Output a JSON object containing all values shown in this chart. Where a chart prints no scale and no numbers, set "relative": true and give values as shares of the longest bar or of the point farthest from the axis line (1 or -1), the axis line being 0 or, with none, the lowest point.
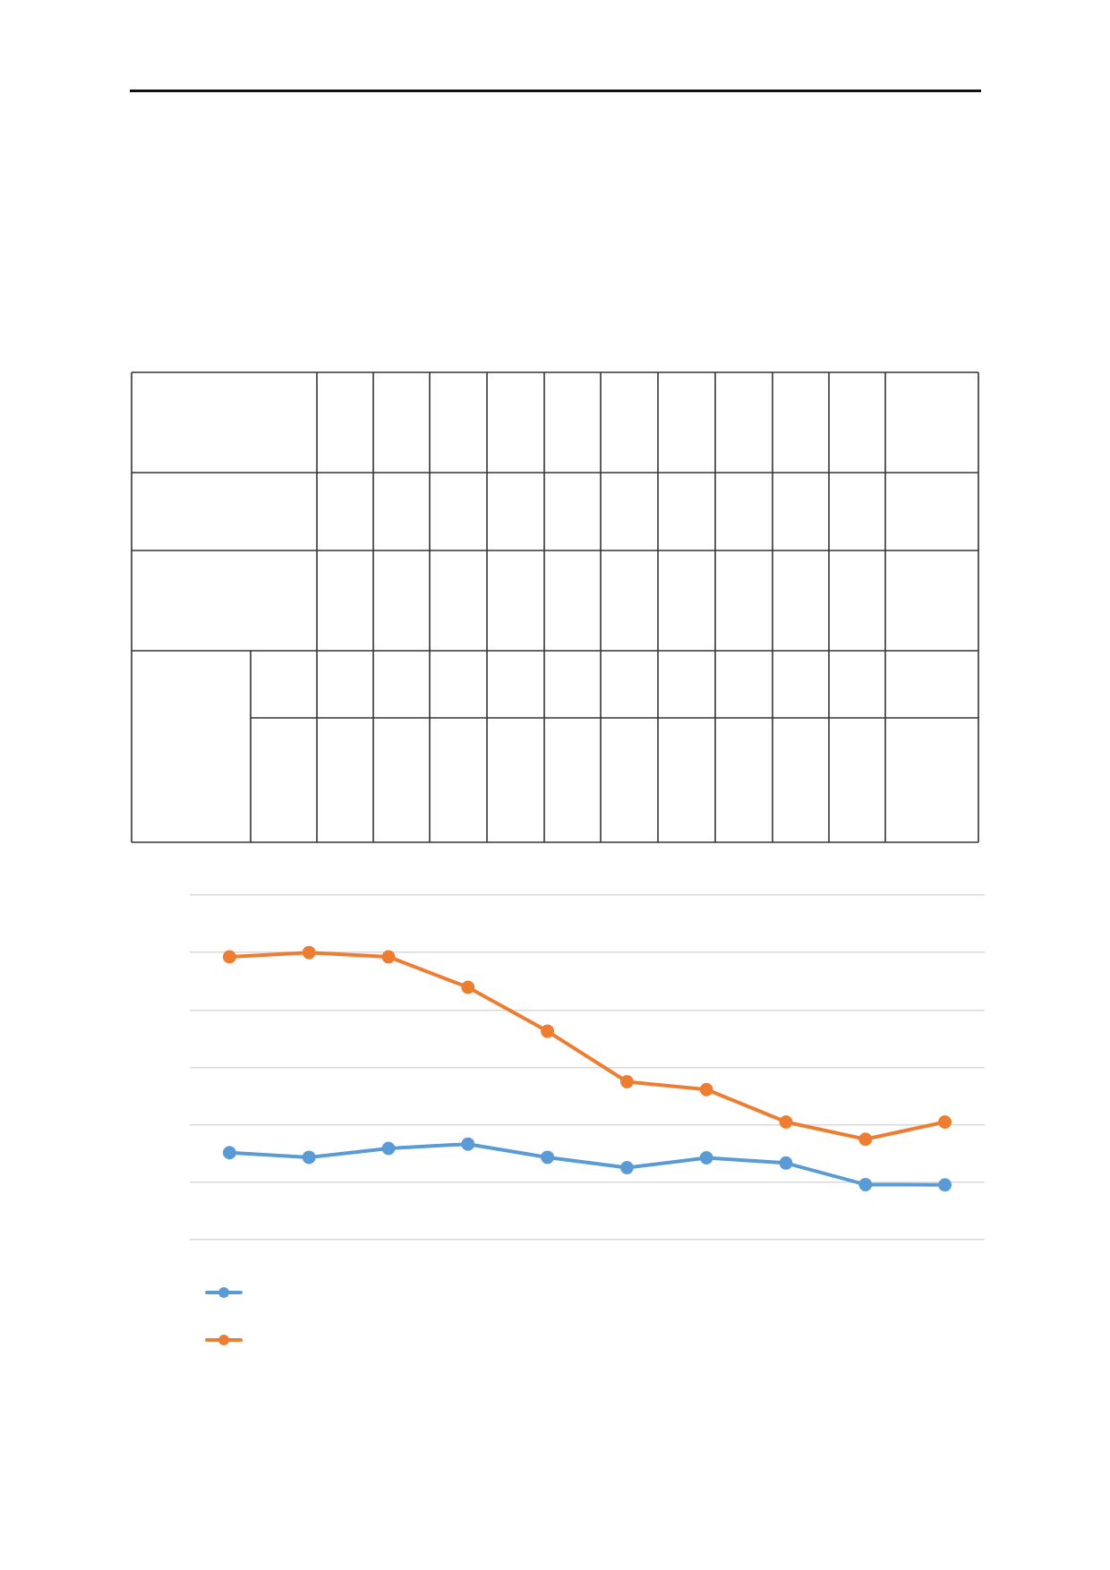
{
  "chart_data": {
    "type": "line",
    "relative": true,
    "categories": [
      null,
      null,
      null,
      null,
      null,
      null,
      null,
      null,
      null,
      null
    ],
    "series": [
      {
        "color": "#5b9bd5",
        "values": [
          0.303,
          0.287,
          0.318,
          0.333,
          0.287,
          0.251,
          0.285,
          0.267,
          0.192,
          0.191
        ]
      },
      {
        "color": "#ed7d31",
        "values": [
          0.985,
          1,
          0.985,
          0.879,
          0.726,
          0.55,
          0.523,
          0.41,
          0.35,
          0.41
        ]
      }
    ],
    "grid": "y",
    "marker": "circle",
    "line_style": "solid",
    "tick_labels": false
  }
}
